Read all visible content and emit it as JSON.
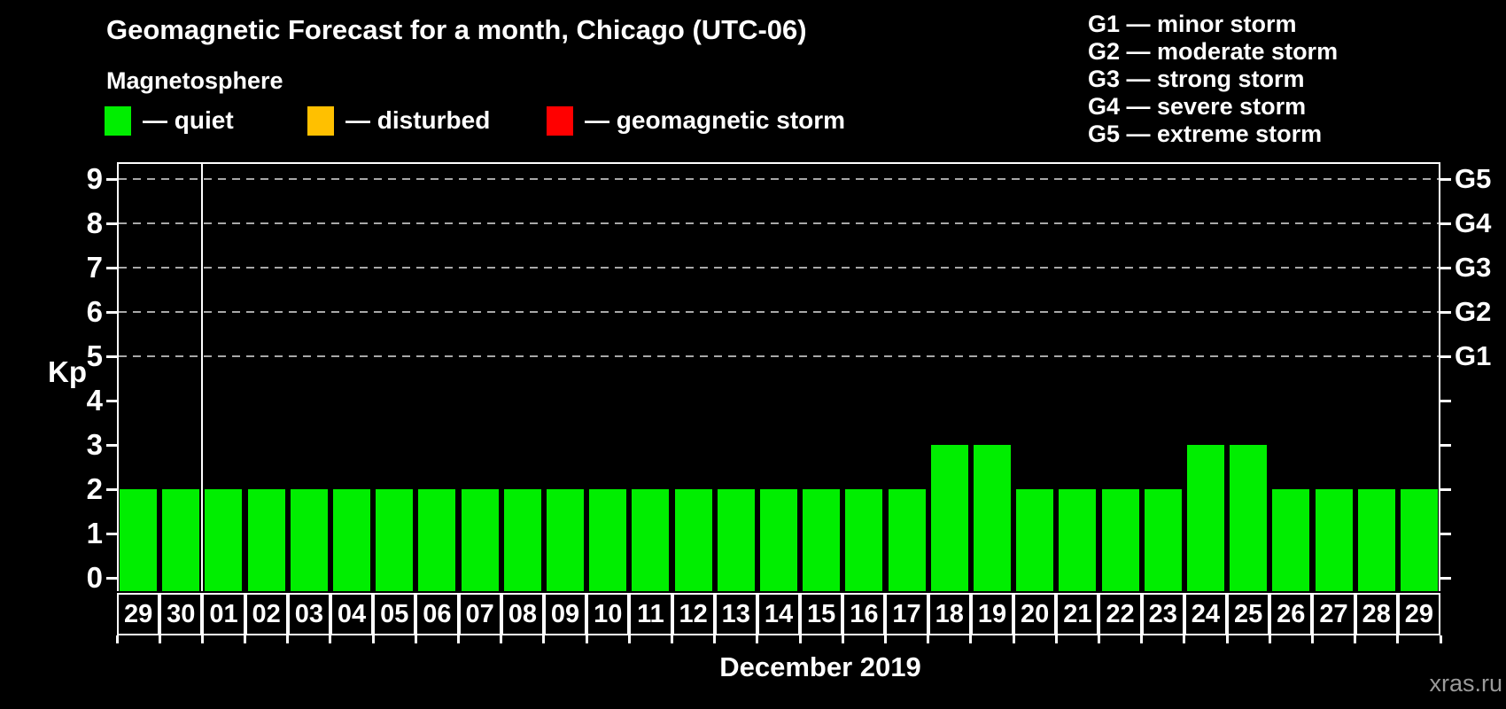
{
  "title": "Geomagnetic Forecast for a month, Chicago (UTC-06)",
  "subtitle": "Magnetosphere",
  "legend": {
    "items": [
      {
        "key": "quiet",
        "label": "— quiet",
        "color": "#00ee00"
      },
      {
        "key": "disturbed",
        "label": "— disturbed",
        "color": "#ffc000"
      },
      {
        "key": "geomagnetic-storm",
        "label": "— geomagnetic storm",
        "color": "#ff0000"
      }
    ]
  },
  "g_legend": [
    "G1 — minor storm",
    "G2 — moderate storm",
    "G3 — strong storm",
    "G4 — severe storm",
    "G5 — extreme storm"
  ],
  "chart_data": {
    "type": "bar",
    "title": "Geomagnetic Forecast for a month, Chicago (UTC-06)",
    "categories": [
      "29",
      "30",
      "01",
      "02",
      "03",
      "04",
      "05",
      "06",
      "07",
      "08",
      "09",
      "10",
      "11",
      "12",
      "13",
      "14",
      "15",
      "16",
      "17",
      "18",
      "19",
      "20",
      "21",
      "22",
      "23",
      "24",
      "25",
      "26",
      "27",
      "28",
      "29"
    ],
    "values": [
      2,
      2,
      2,
      2,
      2,
      2,
      2,
      2,
      2,
      2,
      2,
      2,
      2,
      2,
      2,
      2,
      2,
      2,
      2,
      3,
      3,
      2,
      2,
      2,
      2,
      3,
      3,
      2,
      2,
      2,
      2
    ],
    "bar_status": "quiet",
    "bar_color": "#00ee00",
    "xlabel": "December 2019",
    "ylabel": "Kp",
    "ylim": [
      0,
      9.4
    ],
    "yticks": [
      0,
      1,
      2,
      3,
      4,
      5,
      6,
      7,
      8,
      9
    ],
    "grid_kp": [
      5,
      6,
      7,
      8,
      9
    ],
    "grid_style": "dashed",
    "right_axis": [
      {
        "kp": 5,
        "label": "G1"
      },
      {
        "kp": 6,
        "label": "G2"
      },
      {
        "kp": 7,
        "label": "G3"
      },
      {
        "kp": 8,
        "label": "G4"
      },
      {
        "kp": 9,
        "label": "G5"
      }
    ],
    "month_separator_index": 2,
    "legend_position": "top-left"
  },
  "watermark": "xras.ru",
  "colors": {
    "background": "#000000",
    "text": "#ffffff",
    "bar_quiet": "#00ee00",
    "legend_disturbed": "#ffc000",
    "legend_storm": "#ff0000",
    "grid": "#a8a8a8",
    "axis": "#ffffff",
    "watermark": "#9a9a9a"
  }
}
